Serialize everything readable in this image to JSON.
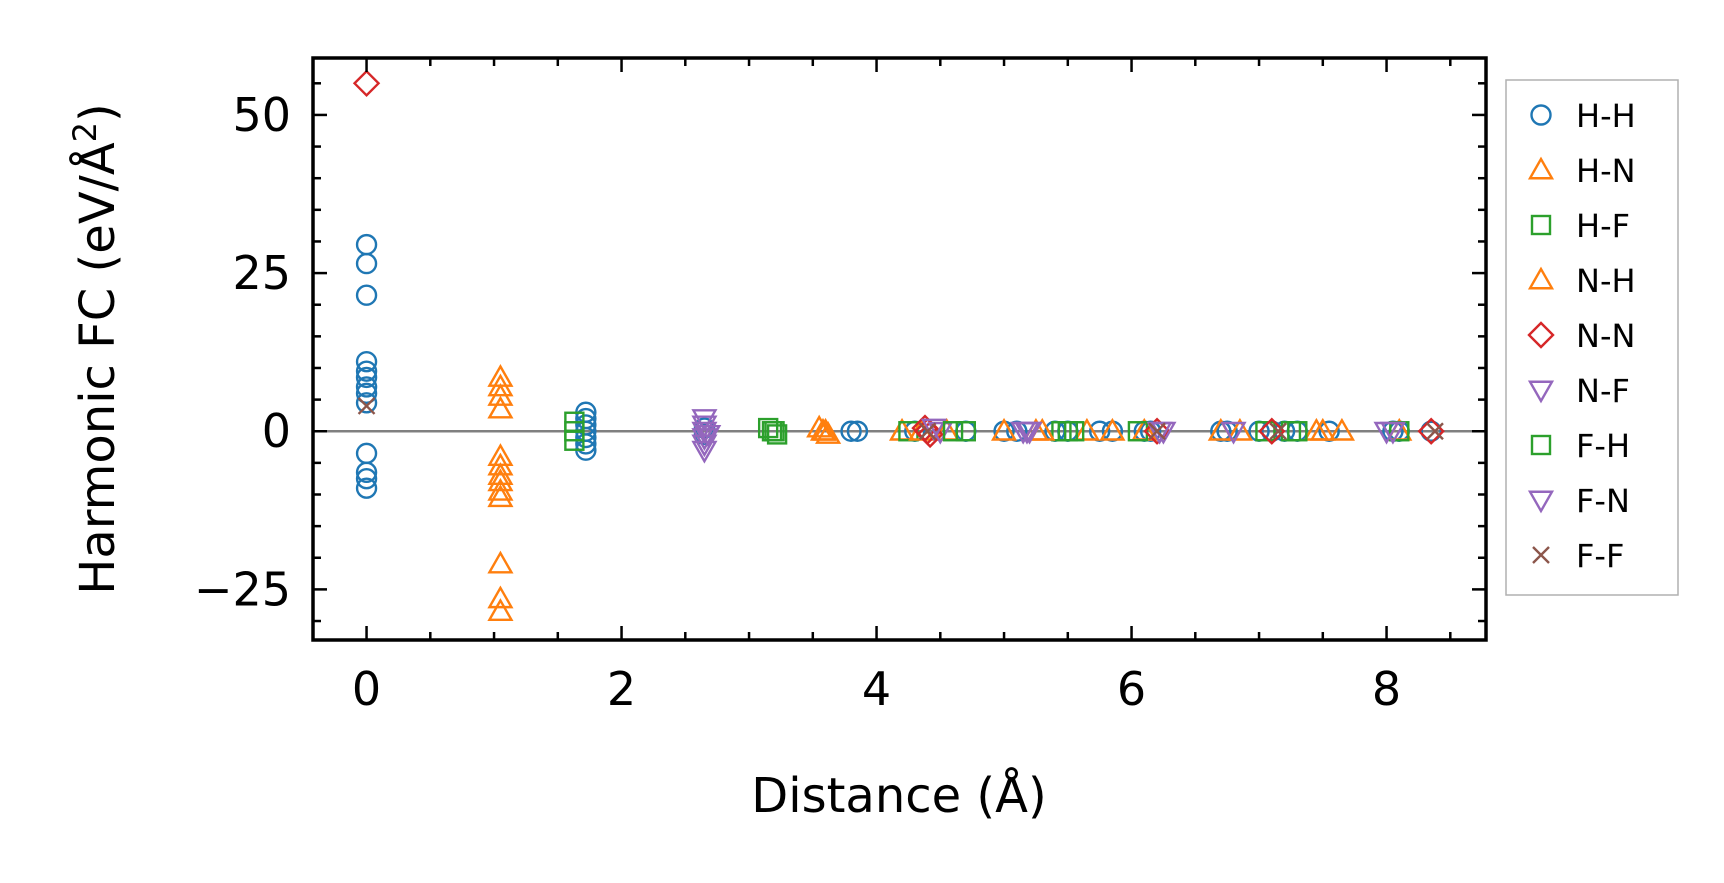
{
  "chart_data": {
    "type": "scatter",
    "title": "",
    "xlabel": "Distance (Å)",
    "ylabel_main": "Harmonic FC (eV/Å",
    "ylabel_sup": "2",
    "ylabel_close": ")",
    "xlim": [
      -0.42,
      8.78
    ],
    "ylim": [
      -33,
      59
    ],
    "xticks": [
      0,
      2,
      4,
      6,
      8
    ],
    "xtick_labels": [
      "0",
      "2",
      "4",
      "6",
      "8"
    ],
    "yticks": [
      -25,
      0,
      25,
      50
    ],
    "ytick_labels": [
      "−25",
      "0",
      "25",
      "50"
    ],
    "zero_line": 0,
    "legend_position": "outside-right",
    "series": [
      {
        "name": "H-H",
        "marker": "circle",
        "filled": false,
        "color": "#1f77b4",
        "points": [
          [
            0,
            29.5
          ],
          [
            0,
            26.5
          ],
          [
            0,
            21.5
          ],
          [
            0,
            11
          ],
          [
            0,
            9.5
          ],
          [
            0,
            8.5
          ],
          [
            0,
            7
          ],
          [
            0,
            6
          ],
          [
            0,
            4.5
          ],
          [
            0,
            -3.5
          ],
          [
            0,
            -6.5
          ],
          [
            0,
            -7.5
          ],
          [
            0,
            -9
          ],
          [
            1.72,
            3
          ],
          [
            1.72,
            2
          ],
          [
            1.72,
            1
          ],
          [
            1.72,
            0
          ],
          [
            1.72,
            -1
          ],
          [
            1.72,
            -2
          ],
          [
            1.72,
            -3
          ],
          [
            2.65,
            0.5
          ],
          [
            2.65,
            -0.5
          ],
          [
            3.8,
            0
          ],
          [
            3.85,
            0
          ],
          [
            4.3,
            0
          ],
          [
            4.7,
            0
          ],
          [
            5.0,
            0
          ],
          [
            5.1,
            0
          ],
          [
            5.4,
            0
          ],
          [
            5.5,
            0
          ],
          [
            5.75,
            0
          ],
          [
            5.85,
            0
          ],
          [
            6.1,
            0
          ],
          [
            6.15,
            0
          ],
          [
            6.7,
            0
          ],
          [
            6.75,
            0
          ],
          [
            7.0,
            0
          ],
          [
            7.1,
            0
          ],
          [
            7.2,
            0
          ],
          [
            7.3,
            0
          ],
          [
            7.55,
            0
          ],
          [
            8.05,
            0
          ],
          [
            8.1,
            0
          ],
          [
            8.35,
            0
          ]
        ]
      },
      {
        "name": "H-N",
        "marker": "triangle-up",
        "filled": false,
        "color": "#ff7f0e",
        "points": [
          [
            1.05,
            8.5
          ],
          [
            1.05,
            7
          ],
          [
            1.05,
            5.5
          ],
          [
            1.05,
            3.5
          ],
          [
            1.05,
            -4
          ],
          [
            1.05,
            -5.5
          ],
          [
            1.05,
            -7
          ],
          [
            1.05,
            -8
          ],
          [
            1.05,
            -9.5
          ],
          [
            1.05,
            -10.5
          ],
          [
            1.05,
            -21
          ],
          [
            1.05,
            -26.5
          ],
          [
            1.05,
            -28.5
          ],
          [
            3.55,
            0.5
          ],
          [
            3.6,
            0
          ],
          [
            3.62,
            -0.5
          ],
          [
            4.2,
            0
          ],
          [
            4.55,
            0
          ],
          [
            5.0,
            0
          ],
          [
            5.25,
            0
          ],
          [
            5.65,
            0
          ],
          [
            6.1,
            0
          ],
          [
            6.85,
            0
          ],
          [
            7.45,
            0
          ],
          [
            7.65,
            0
          ],
          [
            8.1,
            0
          ]
        ]
      },
      {
        "name": "H-F",
        "marker": "square",
        "filled": false,
        "color": "#2ca02c",
        "points": [
          [
            1.63,
            1.5
          ],
          [
            1.63,
            0
          ],
          [
            1.63,
            -1.5
          ],
          [
            3.15,
            0.5
          ],
          [
            3.2,
            0
          ],
          [
            3.22,
            -0.5
          ],
          [
            4.25,
            0
          ],
          [
            4.7,
            0
          ],
          [
            5.45,
            0
          ],
          [
            5.55,
            0
          ],
          [
            6.05,
            0
          ],
          [
            7.05,
            0
          ],
          [
            7.25,
            0
          ],
          [
            8.1,
            0
          ]
        ]
      },
      {
        "name": "N-H",
        "marker": "triangle-up",
        "filled": false,
        "color": "#ff7f0e",
        "points": [
          [
            3.58,
            0
          ],
          [
            4.35,
            0
          ],
          [
            5.3,
            0
          ],
          [
            5.85,
            0
          ],
          [
            6.7,
            0
          ],
          [
            7.5,
            0
          ]
        ]
      },
      {
        "name": "N-N",
        "marker": "diamond",
        "filled": false,
        "color": "#d62728",
        "points": [
          [
            0,
            55
          ],
          [
            4.38,
            0.5
          ],
          [
            4.4,
            0
          ],
          [
            4.42,
            -0.5
          ],
          [
            6.2,
            0
          ],
          [
            7.1,
            0
          ],
          [
            8.35,
            0
          ]
        ]
      },
      {
        "name": "N-F",
        "marker": "triangle-down",
        "filled": false,
        "color": "#9467bd",
        "points": [
          [
            2.65,
            2
          ],
          [
            2.65,
            1
          ],
          [
            2.65,
            0
          ],
          [
            2.65,
            -1
          ],
          [
            2.65,
            -2
          ],
          [
            2.65,
            -3
          ],
          [
            4.45,
            0.5
          ],
          [
            4.5,
            0
          ],
          [
            5.15,
            0
          ],
          [
            5.2,
            0
          ],
          [
            6.25,
            0
          ],
          [
            6.8,
            0
          ],
          [
            8.0,
            0
          ]
        ]
      },
      {
        "name": "F-H",
        "marker": "square",
        "filled": false,
        "color": "#2ca02c",
        "points": [
          [
            3.18,
            0
          ],
          [
            4.6,
            0
          ],
          [
            5.5,
            0
          ],
          [
            7.3,
            0
          ]
        ]
      },
      {
        "name": "F-N",
        "marker": "triangle-down",
        "filled": false,
        "color": "#9467bd",
        "points": [
          [
            2.68,
            -0.5
          ],
          [
            5.18,
            0
          ],
          [
            6.22,
            0
          ],
          [
            8.05,
            0
          ]
        ]
      },
      {
        "name": "F-F",
        "marker": "x",
        "filled": false,
        "color": "#8c564b",
        "points": [
          [
            0,
            4
          ],
          [
            4.4,
            0
          ],
          [
            6.2,
            0
          ],
          [
            7.15,
            0
          ],
          [
            8.38,
            0
          ]
        ]
      }
    ]
  }
}
